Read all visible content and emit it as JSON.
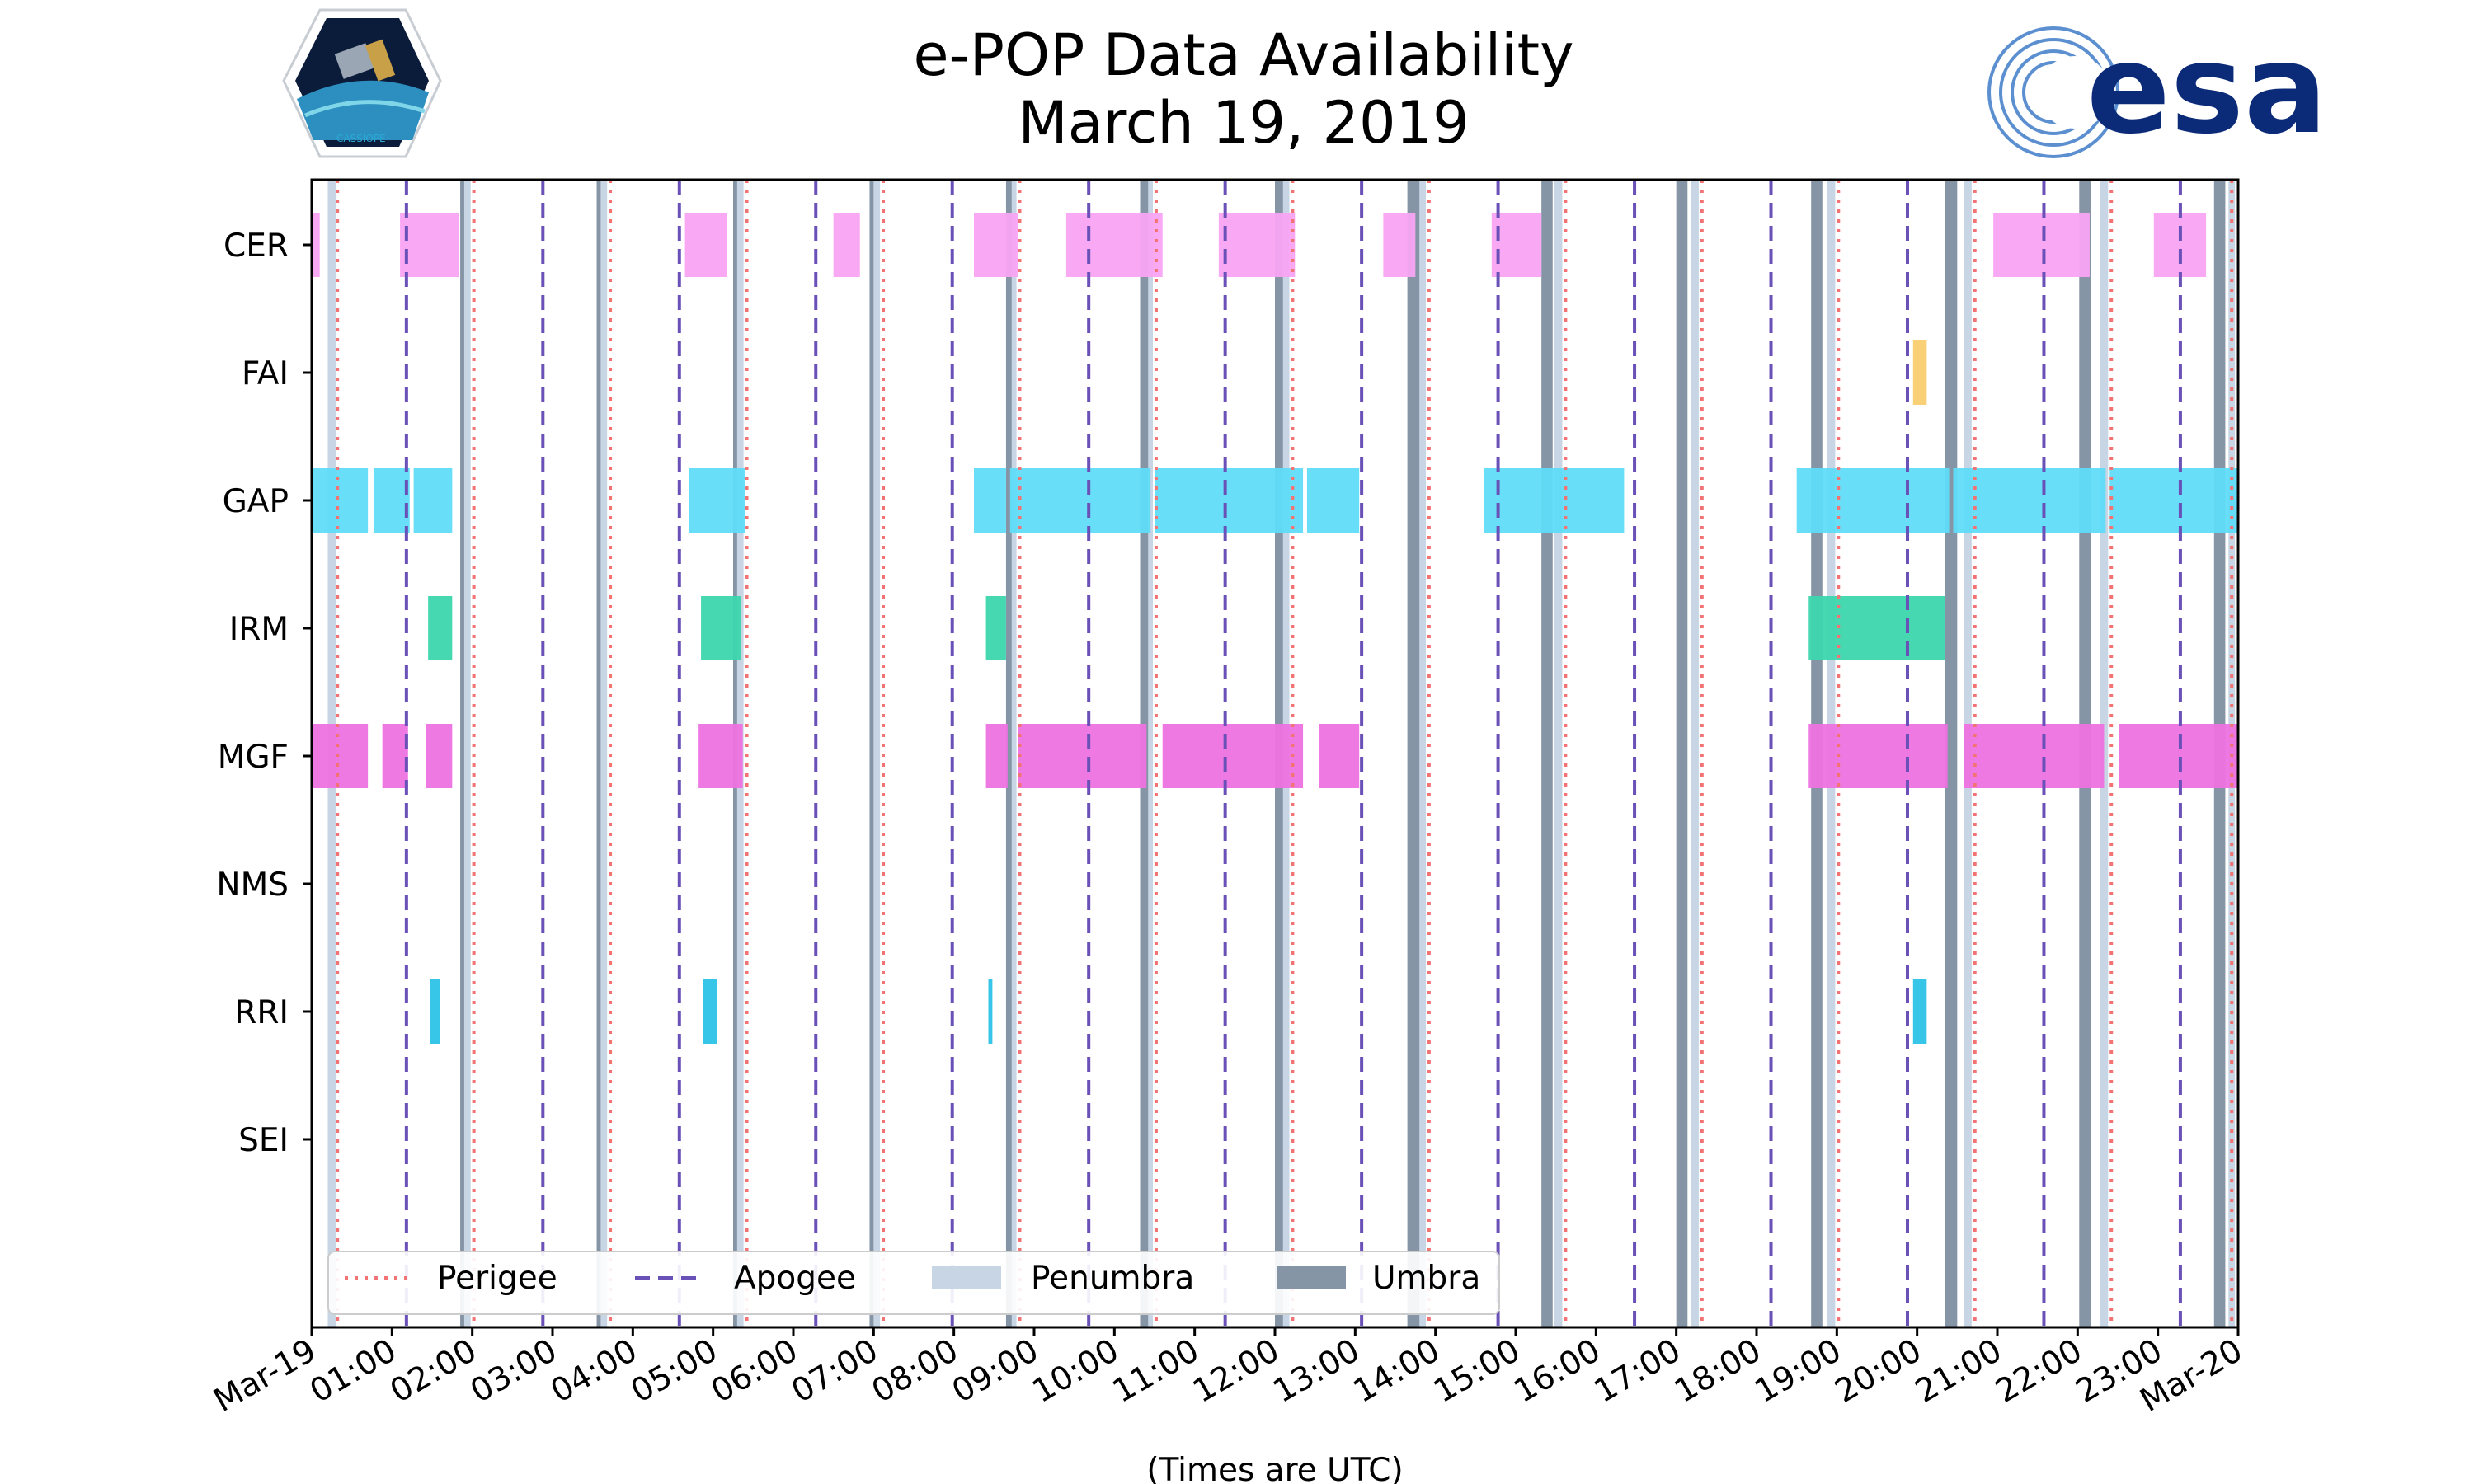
{
  "chart_data": {
    "type": "timeline",
    "title": [
      "e-POP Data Availability",
      "March 19, 2019"
    ],
    "xlabel": "(Times are UTC)",
    "x_range_hours": [
      0,
      24
    ],
    "x_tick_labels": [
      "Mar-19",
      "01:00",
      "02:00",
      "03:00",
      "04:00",
      "05:00",
      "06:00",
      "07:00",
      "08:00",
      "09:00",
      "10:00",
      "11:00",
      "12:00",
      "13:00",
      "14:00",
      "15:00",
      "16:00",
      "17:00",
      "18:00",
      "19:00",
      "20:00",
      "21:00",
      "22:00",
      "23:00",
      "Mar-20"
    ],
    "instruments": [
      "CER",
      "FAI",
      "GAP",
      "IRM",
      "MGF",
      "NMS",
      "RRI",
      "SEI"
    ],
    "colors": {
      "CER": "#f9a4f3",
      "FAI": "#f9cd6e",
      "GAP": "#60dcf8",
      "IRM": "#3cd6ad",
      "MGF": "#ee72e0",
      "RRI": "#2cc3e6",
      "perigee": "#f27373",
      "apogee": "#6a51b8",
      "penumbra": "#c8d5e4",
      "umbra": "#8595a6"
    },
    "availability": {
      "CER": [
        [
          0.0,
          0.1
        ],
        [
          1.1,
          1.83
        ],
        [
          4.65,
          5.17
        ],
        [
          6.5,
          6.83
        ],
        [
          8.25,
          8.8
        ],
        [
          9.4,
          10.6
        ],
        [
          11.3,
          12.25
        ],
        [
          13.35,
          13.75
        ],
        [
          14.7,
          15.32
        ],
        [
          20.95,
          22.15
        ],
        [
          22.95,
          23.6
        ]
      ],
      "FAI": [
        [
          19.95,
          20.12
        ]
      ],
      "GAP": [
        [
          0.0,
          0.7
        ],
        [
          0.77,
          1.22
        ],
        [
          1.27,
          1.75
        ],
        [
          4.7,
          5.4
        ],
        [
          8.25,
          8.65
        ],
        [
          8.7,
          10.45
        ],
        [
          10.5,
          12.35
        ],
        [
          12.4,
          13.05
        ],
        [
          14.6,
          16.35
        ],
        [
          18.5,
          20.4
        ],
        [
          20.45,
          22.35
        ],
        [
          22.4,
          24.0
        ]
      ],
      "IRM": [
        [
          1.45,
          1.75
        ],
        [
          4.85,
          5.35
        ],
        [
          8.4,
          8.65
        ],
        [
          18.65,
          20.35
        ]
      ],
      "MGF": [
        [
          0.0,
          0.7
        ],
        [
          0.88,
          1.2
        ],
        [
          1.42,
          1.75
        ],
        [
          4.82,
          5.37
        ],
        [
          8.4,
          8.67
        ],
        [
          8.8,
          10.4
        ],
        [
          10.6,
          12.35
        ],
        [
          12.55,
          13.05
        ],
        [
          18.65,
          20.38
        ],
        [
          20.58,
          22.33
        ],
        [
          22.52,
          24.0
        ]
      ],
      "NMS": [],
      "RRI": [
        [
          1.47,
          1.6
        ],
        [
          4.87,
          5.05
        ],
        [
          8.43,
          8.48
        ],
        [
          19.95,
          20.12
        ]
      ],
      "SEI": []
    },
    "perigee_hours": [
      0.32,
      2.02,
      3.72,
      5.42,
      7.12,
      8.82,
      10.52,
      12.22,
      13.92,
      15.62,
      17.32,
      19.02,
      20.72,
      22.42,
      23.92
    ],
    "apogee_hours": [
      1.18,
      2.88,
      4.58,
      6.28,
      7.98,
      9.68,
      11.38,
      13.08,
      14.78,
      16.48,
      18.18,
      19.88,
      21.58,
      23.28
    ],
    "penumbra_hours": [
      [
        0.2,
        0.3
      ],
      [
        1.88,
        1.98
      ],
      [
        3.58,
        3.68
      ],
      [
        5.28,
        5.38
      ],
      [
        6.98,
        7.08
      ],
      [
        8.68,
        8.78
      ],
      [
        10.38,
        10.48
      ],
      [
        12.08,
        12.18
      ],
      [
        13.78,
        13.88
      ],
      [
        15.48,
        15.58
      ],
      [
        17.18,
        17.28
      ],
      [
        18.88,
        18.98
      ],
      [
        20.58,
        20.68
      ],
      [
        22.28,
        22.38
      ],
      [
        23.88,
        23.96
      ]
    ],
    "umbra_hours": [
      [
        1.85,
        1.9
      ],
      [
        3.55,
        3.6
      ],
      [
        5.25,
        5.3
      ],
      [
        6.95,
        7.0
      ],
      [
        8.65,
        8.72
      ],
      [
        10.32,
        10.42
      ],
      [
        12.0,
        12.1
      ],
      [
        13.65,
        13.8
      ],
      [
        15.32,
        15.46
      ],
      [
        17.0,
        17.14
      ],
      [
        18.68,
        18.82
      ],
      [
        20.35,
        20.5
      ],
      [
        22.02,
        22.17
      ],
      [
        23.7,
        23.84
      ]
    ],
    "legend": [
      "Perigee",
      "Apogee",
      "Penumbra",
      "Umbra"
    ],
    "legend_position": "bottom-left"
  },
  "logos": {
    "cassiope_caption": "CASSIOPE",
    "esa_text": "esa"
  }
}
